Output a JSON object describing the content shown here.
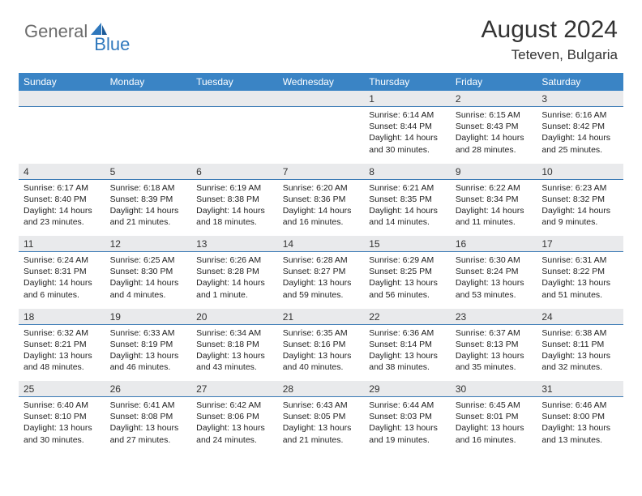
{
  "logo": {
    "general": "General",
    "blue": "Blue"
  },
  "title": "August 2024",
  "location": "Teteven, Bulgaria",
  "colors": {
    "header_bg": "#3a84c5",
    "header_text": "#ffffff",
    "daynum_bg": "#e9eaec",
    "border": "#3a7ab5",
    "text": "#222222",
    "logo_gray": "#6b6b6b",
    "logo_blue": "#2f78bd"
  },
  "weekdays": [
    "Sunday",
    "Monday",
    "Tuesday",
    "Wednesday",
    "Thursday",
    "Friday",
    "Saturday"
  ],
  "weeks": [
    {
      "nums": [
        "",
        "",
        "",
        "",
        "1",
        "2",
        "3"
      ],
      "cells": [
        null,
        null,
        null,
        null,
        {
          "sunrise": "Sunrise: 6:14 AM",
          "sunset": "Sunset: 8:44 PM",
          "day1": "Daylight: 14 hours",
          "day2": "and 30 minutes."
        },
        {
          "sunrise": "Sunrise: 6:15 AM",
          "sunset": "Sunset: 8:43 PM",
          "day1": "Daylight: 14 hours",
          "day2": "and 28 minutes."
        },
        {
          "sunrise": "Sunrise: 6:16 AM",
          "sunset": "Sunset: 8:42 PM",
          "day1": "Daylight: 14 hours",
          "day2": "and 25 minutes."
        }
      ]
    },
    {
      "nums": [
        "4",
        "5",
        "6",
        "7",
        "8",
        "9",
        "10"
      ],
      "cells": [
        {
          "sunrise": "Sunrise: 6:17 AM",
          "sunset": "Sunset: 8:40 PM",
          "day1": "Daylight: 14 hours",
          "day2": "and 23 minutes."
        },
        {
          "sunrise": "Sunrise: 6:18 AM",
          "sunset": "Sunset: 8:39 PM",
          "day1": "Daylight: 14 hours",
          "day2": "and 21 minutes."
        },
        {
          "sunrise": "Sunrise: 6:19 AM",
          "sunset": "Sunset: 8:38 PM",
          "day1": "Daylight: 14 hours",
          "day2": "and 18 minutes."
        },
        {
          "sunrise": "Sunrise: 6:20 AM",
          "sunset": "Sunset: 8:36 PM",
          "day1": "Daylight: 14 hours",
          "day2": "and 16 minutes."
        },
        {
          "sunrise": "Sunrise: 6:21 AM",
          "sunset": "Sunset: 8:35 PM",
          "day1": "Daylight: 14 hours",
          "day2": "and 14 minutes."
        },
        {
          "sunrise": "Sunrise: 6:22 AM",
          "sunset": "Sunset: 8:34 PM",
          "day1": "Daylight: 14 hours",
          "day2": "and 11 minutes."
        },
        {
          "sunrise": "Sunrise: 6:23 AM",
          "sunset": "Sunset: 8:32 PM",
          "day1": "Daylight: 14 hours",
          "day2": "and 9 minutes."
        }
      ]
    },
    {
      "nums": [
        "11",
        "12",
        "13",
        "14",
        "15",
        "16",
        "17"
      ],
      "cells": [
        {
          "sunrise": "Sunrise: 6:24 AM",
          "sunset": "Sunset: 8:31 PM",
          "day1": "Daylight: 14 hours",
          "day2": "and 6 minutes."
        },
        {
          "sunrise": "Sunrise: 6:25 AM",
          "sunset": "Sunset: 8:30 PM",
          "day1": "Daylight: 14 hours",
          "day2": "and 4 minutes."
        },
        {
          "sunrise": "Sunrise: 6:26 AM",
          "sunset": "Sunset: 8:28 PM",
          "day1": "Daylight: 14 hours",
          "day2": "and 1 minute."
        },
        {
          "sunrise": "Sunrise: 6:28 AM",
          "sunset": "Sunset: 8:27 PM",
          "day1": "Daylight: 13 hours",
          "day2": "and 59 minutes."
        },
        {
          "sunrise": "Sunrise: 6:29 AM",
          "sunset": "Sunset: 8:25 PM",
          "day1": "Daylight: 13 hours",
          "day2": "and 56 minutes."
        },
        {
          "sunrise": "Sunrise: 6:30 AM",
          "sunset": "Sunset: 8:24 PM",
          "day1": "Daylight: 13 hours",
          "day2": "and 53 minutes."
        },
        {
          "sunrise": "Sunrise: 6:31 AM",
          "sunset": "Sunset: 8:22 PM",
          "day1": "Daylight: 13 hours",
          "day2": "and 51 minutes."
        }
      ]
    },
    {
      "nums": [
        "18",
        "19",
        "20",
        "21",
        "22",
        "23",
        "24"
      ],
      "cells": [
        {
          "sunrise": "Sunrise: 6:32 AM",
          "sunset": "Sunset: 8:21 PM",
          "day1": "Daylight: 13 hours",
          "day2": "and 48 minutes."
        },
        {
          "sunrise": "Sunrise: 6:33 AM",
          "sunset": "Sunset: 8:19 PM",
          "day1": "Daylight: 13 hours",
          "day2": "and 46 minutes."
        },
        {
          "sunrise": "Sunrise: 6:34 AM",
          "sunset": "Sunset: 8:18 PM",
          "day1": "Daylight: 13 hours",
          "day2": "and 43 minutes."
        },
        {
          "sunrise": "Sunrise: 6:35 AM",
          "sunset": "Sunset: 8:16 PM",
          "day1": "Daylight: 13 hours",
          "day2": "and 40 minutes."
        },
        {
          "sunrise": "Sunrise: 6:36 AM",
          "sunset": "Sunset: 8:14 PM",
          "day1": "Daylight: 13 hours",
          "day2": "and 38 minutes."
        },
        {
          "sunrise": "Sunrise: 6:37 AM",
          "sunset": "Sunset: 8:13 PM",
          "day1": "Daylight: 13 hours",
          "day2": "and 35 minutes."
        },
        {
          "sunrise": "Sunrise: 6:38 AM",
          "sunset": "Sunset: 8:11 PM",
          "day1": "Daylight: 13 hours",
          "day2": "and 32 minutes."
        }
      ]
    },
    {
      "nums": [
        "25",
        "26",
        "27",
        "28",
        "29",
        "30",
        "31"
      ],
      "cells": [
        {
          "sunrise": "Sunrise: 6:40 AM",
          "sunset": "Sunset: 8:10 PM",
          "day1": "Daylight: 13 hours",
          "day2": "and 30 minutes."
        },
        {
          "sunrise": "Sunrise: 6:41 AM",
          "sunset": "Sunset: 8:08 PM",
          "day1": "Daylight: 13 hours",
          "day2": "and 27 minutes."
        },
        {
          "sunrise": "Sunrise: 6:42 AM",
          "sunset": "Sunset: 8:06 PM",
          "day1": "Daylight: 13 hours",
          "day2": "and 24 minutes."
        },
        {
          "sunrise": "Sunrise: 6:43 AM",
          "sunset": "Sunset: 8:05 PM",
          "day1": "Daylight: 13 hours",
          "day2": "and 21 minutes."
        },
        {
          "sunrise": "Sunrise: 6:44 AM",
          "sunset": "Sunset: 8:03 PM",
          "day1": "Daylight: 13 hours",
          "day2": "and 19 minutes."
        },
        {
          "sunrise": "Sunrise: 6:45 AM",
          "sunset": "Sunset: 8:01 PM",
          "day1": "Daylight: 13 hours",
          "day2": "and 16 minutes."
        },
        {
          "sunrise": "Sunrise: 6:46 AM",
          "sunset": "Sunset: 8:00 PM",
          "day1": "Daylight: 13 hours",
          "day2": "and 13 minutes."
        }
      ]
    }
  ]
}
